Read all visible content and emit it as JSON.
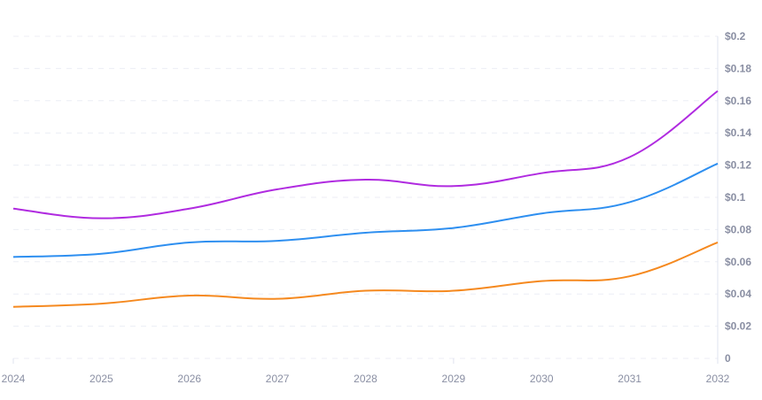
{
  "chart_data": {
    "type": "line",
    "x": [
      2024,
      2025,
      2026,
      2027,
      2028,
      2029,
      2030,
      2031,
      2032
    ],
    "xlim": [
      2024,
      2032
    ],
    "ylim": [
      0,
      0.2
    ],
    "y_ticks": [
      "0",
      "$0.02",
      "$0.04",
      "$0.06",
      "$0.08",
      "$0.1",
      "$0.12",
      "$0.14",
      "$0.16",
      "$0.18",
      "$0.2"
    ],
    "y_tick_values": [
      0,
      0.02,
      0.04,
      0.06,
      0.08,
      0.1,
      0.12,
      0.14,
      0.16,
      0.18,
      0.2
    ],
    "x_ticks": [
      "2024",
      "2025",
      "2026",
      "2027",
      "2028",
      "2029",
      "2030",
      "2031",
      "2032"
    ],
    "y_axis_position": "right",
    "grid": "horizontal dashed",
    "series": [
      {
        "color": "#b02be0",
        "values": [
          0.093,
          0.087,
          0.093,
          0.105,
          0.111,
          0.107,
          0.115,
          0.125,
          0.166
        ]
      },
      {
        "color": "#2e8ff0",
        "values": [
          0.063,
          0.065,
          0.072,
          0.073,
          0.078,
          0.081,
          0.09,
          0.097,
          0.121
        ]
      },
      {
        "color": "#f5891f",
        "values": [
          0.032,
          0.034,
          0.039,
          0.037,
          0.042,
          0.042,
          0.048,
          0.051,
          0.072
        ]
      }
    ]
  }
}
